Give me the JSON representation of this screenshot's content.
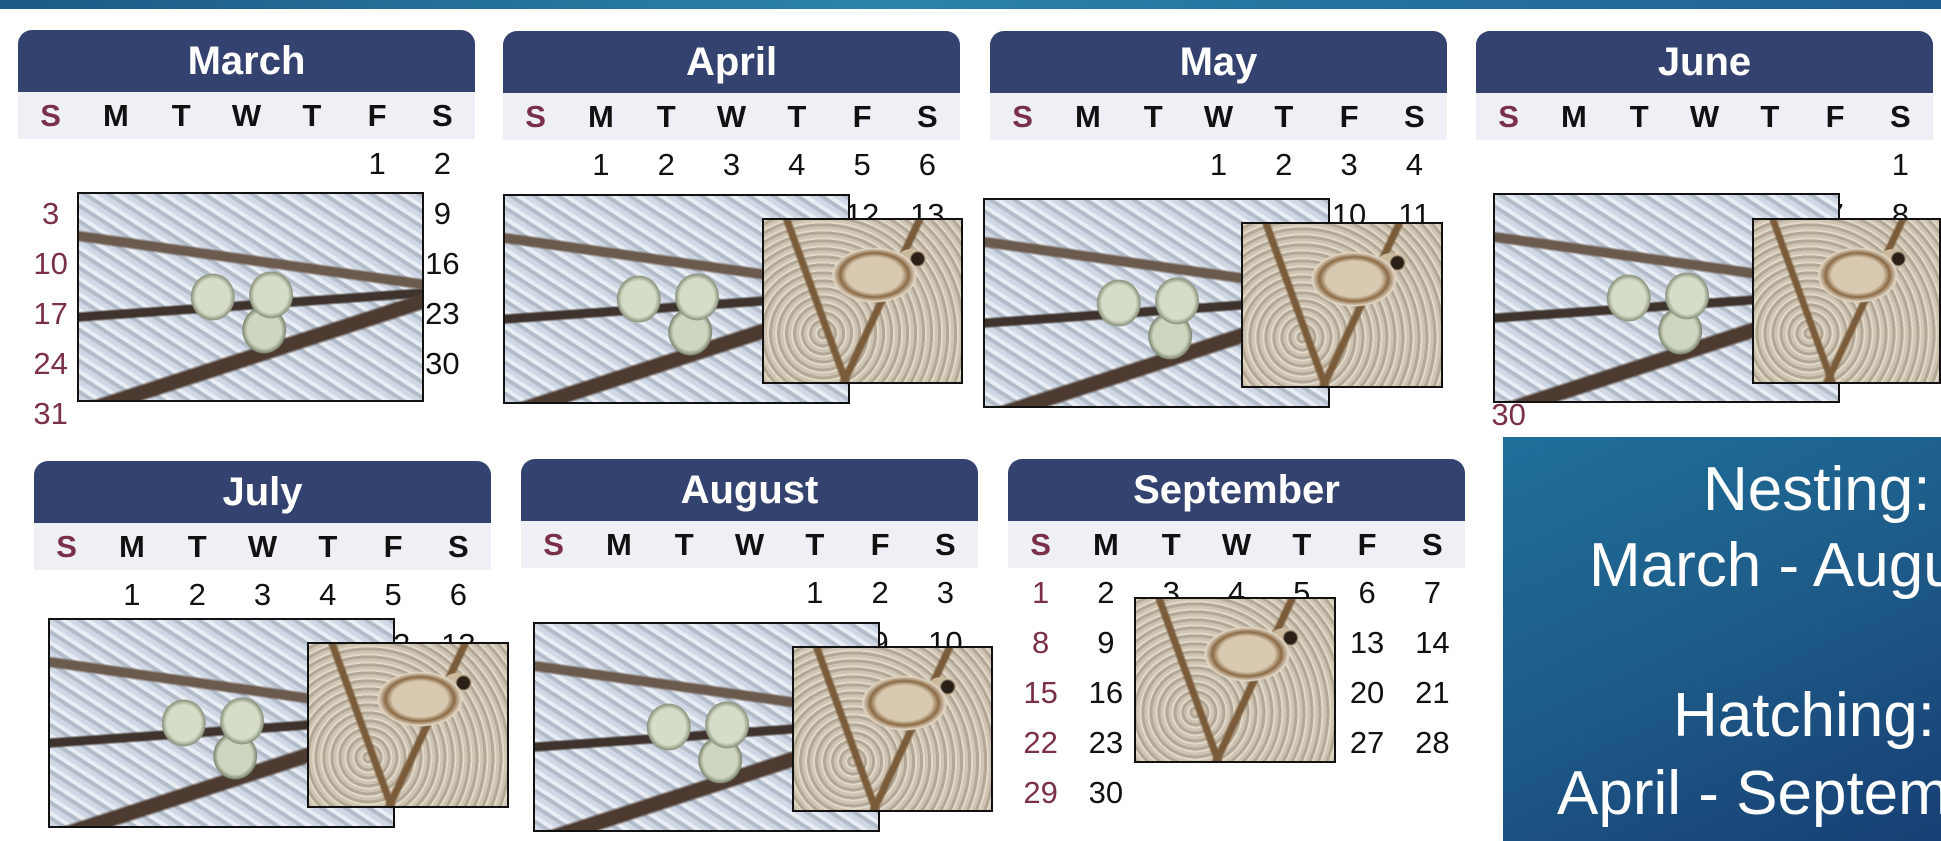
{
  "months": [
    {
      "id": "march",
      "name": "March",
      "weekdays": [
        "S",
        "M",
        "T",
        "W",
        "T",
        "F",
        "S"
      ],
      "weeks": [
        [
          "",
          "",
          "",
          "",
          "",
          "1",
          "2"
        ],
        [
          "3",
          "",
          "",
          "",
          "",
          "",
          "9"
        ],
        [
          "10",
          "",
          "",
          "",
          "",
          "",
          "16"
        ],
        [
          "17",
          "",
          "",
          "",
          "",
          "",
          "23"
        ],
        [
          "24",
          "",
          "",
          "",
          "",
          "",
          "30"
        ],
        [
          "31",
          "",
          "",
          "",
          "",
          "",
          ""
        ]
      ]
    },
    {
      "id": "april",
      "name": "April",
      "weekdays": [
        "S",
        "M",
        "T",
        "W",
        "T",
        "F",
        "S"
      ],
      "weeks": [
        [
          "",
          "1",
          "2",
          "3",
          "4",
          "5",
          "6"
        ],
        [
          "",
          "",
          "",
          "",
          "",
          "12",
          "13"
        ]
      ]
    },
    {
      "id": "may",
      "name": "May",
      "weekdays": [
        "S",
        "M",
        "T",
        "W",
        "T",
        "F",
        "S"
      ],
      "weeks": [
        [
          "",
          "",
          "",
          "1",
          "2",
          "3",
          "4"
        ],
        [
          "",
          "",
          "",
          "",
          "",
          "10",
          "11"
        ]
      ]
    },
    {
      "id": "june",
      "name": "June",
      "weekdays": [
        "S",
        "M",
        "T",
        "W",
        "T",
        "F",
        "S"
      ],
      "weeks": [
        [
          "",
          "",
          "",
          "",
          "",
          "",
          "1"
        ],
        [
          "",
          "",
          "",
          "",
          "",
          "7",
          "8"
        ],
        [
          "",
          "",
          "",
          "",
          "",
          "",
          ""
        ],
        [
          "",
          "",
          "",
          "",
          "",
          "",
          ""
        ],
        [
          "",
          "",
          "",
          "",
          "",
          "",
          ""
        ],
        [
          "30",
          "",
          "",
          "",
          "",
          "",
          ""
        ]
      ]
    },
    {
      "id": "july",
      "name": "July",
      "weekdays": [
        "S",
        "M",
        "T",
        "W",
        "T",
        "F",
        "S"
      ],
      "weeks": [
        [
          "",
          "1",
          "2",
          "3",
          "4",
          "5",
          "6"
        ],
        [
          "",
          "",
          "",
          "",
          "",
          "12",
          "13"
        ]
      ]
    },
    {
      "id": "august",
      "name": "August",
      "weekdays": [
        "S",
        "M",
        "T",
        "W",
        "T",
        "F",
        "S"
      ],
      "weeks": [
        [
          "",
          "",
          "",
          "",
          "1",
          "2",
          "3"
        ],
        [
          "",
          "",
          "",
          "",
          "",
          "9",
          "10"
        ]
      ]
    },
    {
      "id": "september",
      "name": "September",
      "weekdays": [
        "S",
        "M",
        "T",
        "W",
        "T",
        "F",
        "S"
      ],
      "weeks": [
        [
          "1",
          "2",
          "3",
          "4",
          "5",
          "6",
          "7"
        ],
        [
          "8",
          "9",
          "",
          "",
          "",
          "13",
          "14"
        ],
        [
          "15",
          "16",
          "",
          "",
          "",
          "20",
          "21"
        ],
        [
          "22",
          "23",
          "",
          "",
          "",
          "27",
          "28"
        ],
        [
          "29",
          "30",
          "",
          "",
          "",
          "",
          ""
        ]
      ]
    }
  ],
  "info": {
    "nesting_label": "Nesting:",
    "nesting_range": "March - August",
    "hatching_label": "Hatching:",
    "hatching_range": "April - September"
  },
  "colors": {
    "header_navy": "#34426f",
    "sunday_maroon": "#7a3048",
    "info_teal": "#1f6f99"
  }
}
